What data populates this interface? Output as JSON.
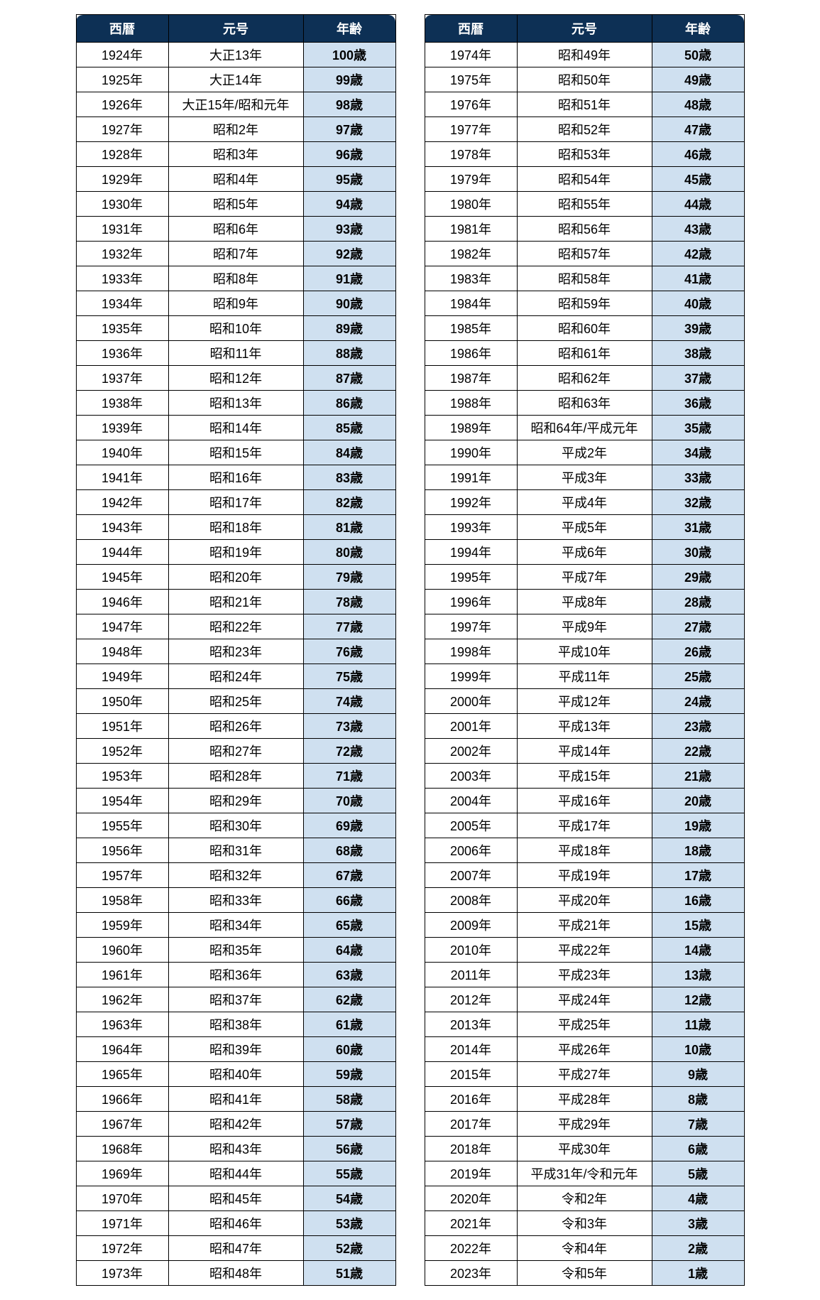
{
  "headers": {
    "year": "西暦",
    "era": "元号",
    "age": "年齢"
  },
  "colors": {
    "header_bg": "#0d3055",
    "header_text": "#ffffff",
    "age_bg": "#cfe0f0",
    "border": "#000000",
    "cell_bg": "#ffffff"
  },
  "column_widths": {
    "year": 130,
    "era": 190,
    "age": 130
  },
  "left": [
    {
      "year": "1924年",
      "era": "大正13年",
      "age": "100歳"
    },
    {
      "year": "1925年",
      "era": "大正14年",
      "age": "99歳"
    },
    {
      "year": "1926年",
      "era": "大正15年/昭和元年",
      "age": "98歳"
    },
    {
      "year": "1927年",
      "era": "昭和2年",
      "age": "97歳"
    },
    {
      "year": "1928年",
      "era": "昭和3年",
      "age": "96歳"
    },
    {
      "year": "1929年",
      "era": "昭和4年",
      "age": "95歳"
    },
    {
      "year": "1930年",
      "era": "昭和5年",
      "age": "94歳"
    },
    {
      "year": "1931年",
      "era": "昭和6年",
      "age": "93歳"
    },
    {
      "year": "1932年",
      "era": "昭和7年",
      "age": "92歳"
    },
    {
      "year": "1933年",
      "era": "昭和8年",
      "age": "91歳"
    },
    {
      "year": "1934年",
      "era": "昭和9年",
      "age": "90歳"
    },
    {
      "year": "1935年",
      "era": "昭和10年",
      "age": "89歳"
    },
    {
      "year": "1936年",
      "era": "昭和11年",
      "age": "88歳"
    },
    {
      "year": "1937年",
      "era": "昭和12年",
      "age": "87歳"
    },
    {
      "year": "1938年",
      "era": "昭和13年",
      "age": "86歳"
    },
    {
      "year": "1939年",
      "era": "昭和14年",
      "age": "85歳"
    },
    {
      "year": "1940年",
      "era": "昭和15年",
      "age": "84歳"
    },
    {
      "year": "1941年",
      "era": "昭和16年",
      "age": "83歳"
    },
    {
      "year": "1942年",
      "era": "昭和17年",
      "age": "82歳"
    },
    {
      "year": "1943年",
      "era": "昭和18年",
      "age": "81歳"
    },
    {
      "year": "1944年",
      "era": "昭和19年",
      "age": "80歳"
    },
    {
      "year": "1945年",
      "era": "昭和20年",
      "age": "79歳"
    },
    {
      "year": "1946年",
      "era": "昭和21年",
      "age": "78歳"
    },
    {
      "year": "1947年",
      "era": "昭和22年",
      "age": "77歳"
    },
    {
      "year": "1948年",
      "era": "昭和23年",
      "age": "76歳"
    },
    {
      "year": "1949年",
      "era": "昭和24年",
      "age": "75歳"
    },
    {
      "year": "1950年",
      "era": "昭和25年",
      "age": "74歳"
    },
    {
      "year": "1951年",
      "era": "昭和26年",
      "age": "73歳"
    },
    {
      "year": "1952年",
      "era": "昭和27年",
      "age": "72歳"
    },
    {
      "year": "1953年",
      "era": "昭和28年",
      "age": "71歳"
    },
    {
      "year": "1954年",
      "era": "昭和29年",
      "age": "70歳"
    },
    {
      "year": "1955年",
      "era": "昭和30年",
      "age": "69歳"
    },
    {
      "year": "1956年",
      "era": "昭和31年",
      "age": "68歳"
    },
    {
      "year": "1957年",
      "era": "昭和32年",
      "age": "67歳"
    },
    {
      "year": "1958年",
      "era": "昭和33年",
      "age": "66歳"
    },
    {
      "year": "1959年",
      "era": "昭和34年",
      "age": "65歳"
    },
    {
      "year": "1960年",
      "era": "昭和35年",
      "age": "64歳"
    },
    {
      "year": "1961年",
      "era": "昭和36年",
      "age": "63歳"
    },
    {
      "year": "1962年",
      "era": "昭和37年",
      "age": "62歳"
    },
    {
      "year": "1963年",
      "era": "昭和38年",
      "age": "61歳"
    },
    {
      "year": "1964年",
      "era": "昭和39年",
      "age": "60歳"
    },
    {
      "year": "1965年",
      "era": "昭和40年",
      "age": "59歳"
    },
    {
      "year": "1966年",
      "era": "昭和41年",
      "age": "58歳"
    },
    {
      "year": "1967年",
      "era": "昭和42年",
      "age": "57歳"
    },
    {
      "year": "1968年",
      "era": "昭和43年",
      "age": "56歳"
    },
    {
      "year": "1969年",
      "era": "昭和44年",
      "age": "55歳"
    },
    {
      "year": "1970年",
      "era": "昭和45年",
      "age": "54歳"
    },
    {
      "year": "1971年",
      "era": "昭和46年",
      "age": "53歳"
    },
    {
      "year": "1972年",
      "era": "昭和47年",
      "age": "52歳"
    },
    {
      "year": "1973年",
      "era": "昭和48年",
      "age": "51歳"
    }
  ],
  "right": [
    {
      "year": "1974年",
      "era": "昭和49年",
      "age": "50歳"
    },
    {
      "year": "1975年",
      "era": "昭和50年",
      "age": "49歳"
    },
    {
      "year": "1976年",
      "era": "昭和51年",
      "age": "48歳"
    },
    {
      "year": "1977年",
      "era": "昭和52年",
      "age": "47歳"
    },
    {
      "year": "1978年",
      "era": "昭和53年",
      "age": "46歳"
    },
    {
      "year": "1979年",
      "era": "昭和54年",
      "age": "45歳"
    },
    {
      "year": "1980年",
      "era": "昭和55年",
      "age": "44歳"
    },
    {
      "year": "1981年",
      "era": "昭和56年",
      "age": "43歳"
    },
    {
      "year": "1982年",
      "era": "昭和57年",
      "age": "42歳"
    },
    {
      "year": "1983年",
      "era": "昭和58年",
      "age": "41歳"
    },
    {
      "year": "1984年",
      "era": "昭和59年",
      "age": "40歳"
    },
    {
      "year": "1985年",
      "era": "昭和60年",
      "age": "39歳"
    },
    {
      "year": "1986年",
      "era": "昭和61年",
      "age": "38歳"
    },
    {
      "year": "1987年",
      "era": "昭和62年",
      "age": "37歳"
    },
    {
      "year": "1988年",
      "era": "昭和63年",
      "age": "36歳"
    },
    {
      "year": "1989年",
      "era": "昭和64年/平成元年",
      "age": "35歳"
    },
    {
      "year": "1990年",
      "era": "平成2年",
      "age": "34歳"
    },
    {
      "year": "1991年",
      "era": "平成3年",
      "age": "33歳"
    },
    {
      "year": "1992年",
      "era": "平成4年",
      "age": "32歳"
    },
    {
      "year": "1993年",
      "era": "平成5年",
      "age": "31歳"
    },
    {
      "year": "1994年",
      "era": "平成6年",
      "age": "30歳"
    },
    {
      "year": "1995年",
      "era": "平成7年",
      "age": "29歳"
    },
    {
      "year": "1996年",
      "era": "平成8年",
      "age": "28歳"
    },
    {
      "year": "1997年",
      "era": "平成9年",
      "age": "27歳"
    },
    {
      "year": "1998年",
      "era": "平成10年",
      "age": "26歳"
    },
    {
      "year": "1999年",
      "era": "平成11年",
      "age": "25歳"
    },
    {
      "year": "2000年",
      "era": "平成12年",
      "age": "24歳"
    },
    {
      "year": "2001年",
      "era": "平成13年",
      "age": "23歳"
    },
    {
      "year": "2002年",
      "era": "平成14年",
      "age": "22歳"
    },
    {
      "year": "2003年",
      "era": "平成15年",
      "age": "21歳"
    },
    {
      "year": "2004年",
      "era": "平成16年",
      "age": "20歳"
    },
    {
      "year": "2005年",
      "era": "平成17年",
      "age": "19歳"
    },
    {
      "year": "2006年",
      "era": "平成18年",
      "age": "18歳"
    },
    {
      "year": "2007年",
      "era": "平成19年",
      "age": "17歳"
    },
    {
      "year": "2008年",
      "era": "平成20年",
      "age": "16歳"
    },
    {
      "year": "2009年",
      "era": "平成21年",
      "age": "15歳"
    },
    {
      "year": "2010年",
      "era": "平成22年",
      "age": "14歳"
    },
    {
      "year": "2011年",
      "era": "平成23年",
      "age": "13歳"
    },
    {
      "year": "2012年",
      "era": "平成24年",
      "age": "12歳"
    },
    {
      "year": "2013年",
      "era": "平成25年",
      "age": "11歳"
    },
    {
      "year": "2014年",
      "era": "平成26年",
      "age": "10歳"
    },
    {
      "year": "2015年",
      "era": "平成27年",
      "age": "9歳"
    },
    {
      "year": "2016年",
      "era": "平成28年",
      "age": "8歳"
    },
    {
      "year": "2017年",
      "era": "平成29年",
      "age": "7歳"
    },
    {
      "year": "2018年",
      "era": "平成30年",
      "age": "6歳"
    },
    {
      "year": "2019年",
      "era": "平成31年/令和元年",
      "age": "5歳"
    },
    {
      "year": "2020年",
      "era": "令和2年",
      "age": "4歳"
    },
    {
      "year": "2021年",
      "era": "令和3年",
      "age": "3歳"
    },
    {
      "year": "2022年",
      "era": "令和4年",
      "age": "2歳"
    },
    {
      "year": "2023年",
      "era": "令和5年",
      "age": "1歳"
    }
  ]
}
